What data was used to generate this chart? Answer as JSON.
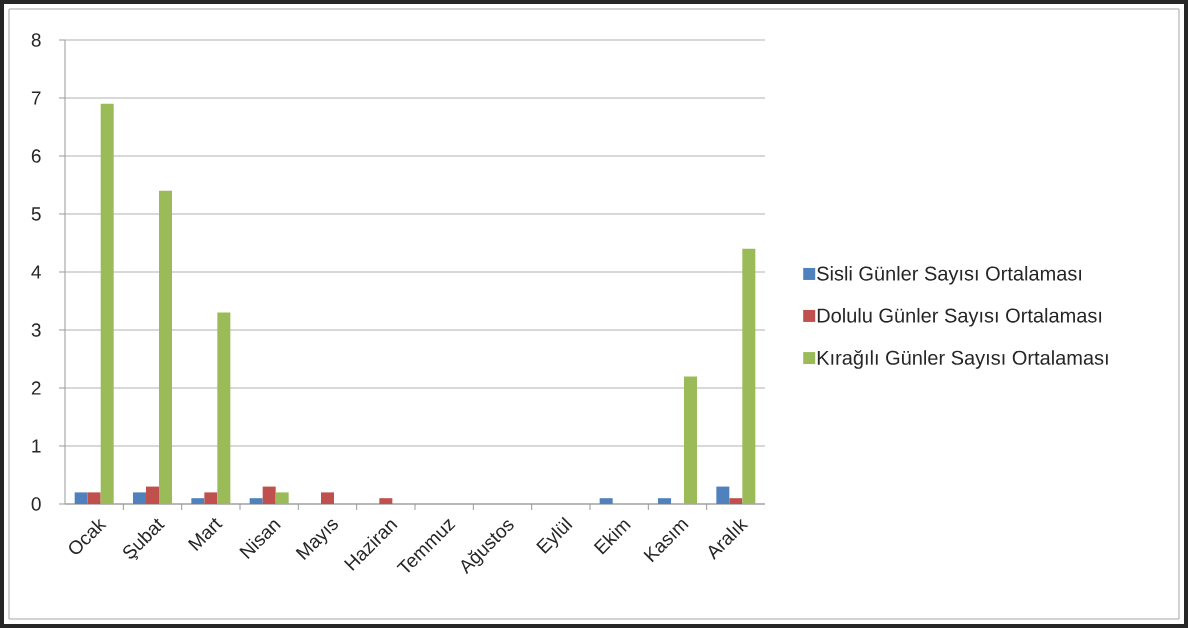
{
  "chart_data": {
    "type": "bar",
    "categories": [
      "Ocak",
      "Şubat",
      "Mart",
      "Nisan",
      "Mayıs",
      "Haziran",
      "Temmuz",
      "Ağustos",
      "Eylül",
      "Ekim",
      "Kasım",
      "Aralık"
    ],
    "series": [
      {
        "name": "Sisli Günler Sayısı Ortalaması",
        "color": "#4f81bd",
        "values": [
          0.2,
          0.2,
          0.1,
          0.1,
          0,
          0,
          0,
          0,
          0,
          0.1,
          0.1,
          0.3
        ]
      },
      {
        "name": "Dolulu Günler Sayısı Ortalaması",
        "color": "#c0504d",
        "values": [
          0.2,
          0.3,
          0.2,
          0.3,
          0.2,
          0.1,
          0,
          0,
          0,
          0,
          0,
          0.1
        ]
      },
      {
        "name": "Kırağılı Günler Sayısı Ortalaması",
        "color": "#9bbb59",
        "values": [
          6.9,
          5.4,
          3.3,
          0.2,
          0,
          0,
          0,
          0,
          0,
          0,
          2.2,
          4.4
        ]
      }
    ],
    "ylim": [
      0,
      8
    ],
    "yticks": [
      0,
      1,
      2,
      3,
      4,
      5,
      6,
      7,
      8
    ],
    "grid": "y",
    "legend": "right"
  }
}
